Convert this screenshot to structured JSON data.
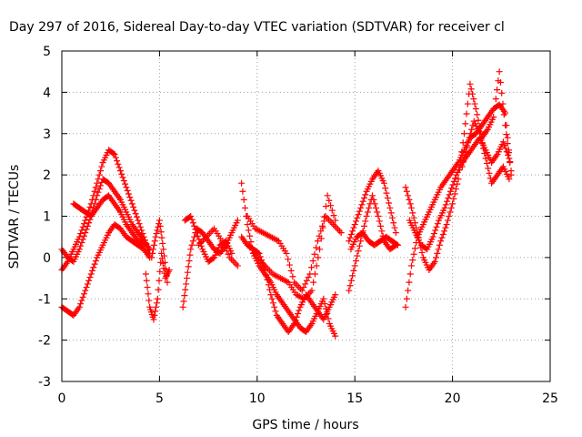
{
  "chart_data": {
    "type": "scatter",
    "title": "Day 297 of 2016, Sidereal Day-to-day VTEC variation (SDTVAR) for receiver cl",
    "xlabel": "GPS time / hours",
    "ylabel": "SDTVAR / TECUs",
    "xlim": [
      0,
      25
    ],
    "ylim": [
      -3,
      5
    ],
    "xticks": [
      0,
      5,
      10,
      15,
      20,
      25
    ],
    "yticks": [
      -3,
      -2,
      -1,
      0,
      1,
      2,
      3,
      4,
      5
    ],
    "grid": true,
    "marker": "+",
    "color": "#ff0000",
    "series": [
      {
        "x": [
          0.0,
          0.3,
          0.6,
          0.9,
          1.2,
          1.5,
          1.8,
          2.1,
          2.4,
          2.7,
          3.0,
          3.3,
          3.6,
          3.9,
          4.2,
          4.5
        ],
        "y": [
          -1.2,
          -1.3,
          -1.4,
          -1.2,
          -0.8,
          -0.4,
          0.0,
          0.3,
          0.6,
          0.8,
          0.7,
          0.5,
          0.4,
          0.3,
          0.2,
          0.0
        ]
      },
      {
        "x": [
          0.0,
          0.3,
          0.6,
          0.9,
          1.2,
          1.5,
          1.8,
          2.1,
          2.4,
          2.7,
          3.0,
          3.3,
          3.6,
          3.9,
          4.2,
          4.5
        ],
        "y": [
          -0.3,
          -0.1,
          0.2,
          0.5,
          0.9,
          1.3,
          1.8,
          2.3,
          2.6,
          2.5,
          2.1,
          1.7,
          1.3,
          0.9,
          0.5,
          0.1
        ]
      },
      {
        "x": [
          0.0,
          0.3,
          0.6,
          0.9,
          1.2,
          1.5,
          1.8,
          2.1,
          2.4,
          2.7,
          3.0,
          3.3,
          3.6,
          3.9,
          4.2,
          4.5
        ],
        "y": [
          0.2,
          0.0,
          -0.1,
          0.2,
          0.6,
          1.0,
          1.5,
          1.9,
          1.8,
          1.6,
          1.4,
          1.1,
          0.8,
          0.6,
          0.4,
          0.2
        ]
      },
      {
        "x": [
          0.6,
          0.9,
          1.2,
          1.5,
          1.8,
          2.1,
          2.4,
          2.7,
          3.0,
          3.3,
          3.6,
          3.9,
          4.2
        ],
        "y": [
          1.3,
          1.2,
          1.1,
          1.0,
          1.2,
          1.4,
          1.5,
          1.3,
          1.1,
          0.8,
          0.6,
          0.4,
          0.3
        ]
      },
      {
        "x": [
          4.3,
          4.5,
          4.7,
          4.9,
          5.1,
          5.3,
          5.5
        ],
        "y": [
          -0.4,
          -1.2,
          -1.5,
          -1.0,
          0.1,
          -0.5,
          -0.3
        ]
      },
      {
        "x": [
          4.6,
          4.8,
          5.0,
          5.2,
          5.4
        ],
        "y": [
          0.0,
          0.5,
          0.9,
          0.2,
          -0.6
        ]
      },
      {
        "x": [
          6.2,
          6.4,
          6.6,
          6.9,
          7.2,
          7.5,
          7.8,
          8.1,
          8.4,
          8.7,
          9.0
        ],
        "y": [
          -1.2,
          -0.5,
          0.2,
          0.7,
          0.6,
          0.4,
          0.2,
          0.1,
          0.3,
          0.6,
          0.9
        ]
      },
      {
        "x": [
          6.3,
          6.6,
          6.9,
          7.2,
          7.5,
          7.8,
          8.1,
          8.4,
          8.7
        ],
        "y": [
          0.9,
          1.0,
          0.6,
          0.2,
          -0.1,
          0.0,
          0.3,
          0.4,
          0.1
        ]
      },
      {
        "x": [
          7.0,
          7.4,
          7.8,
          8.2,
          8.6,
          9.0
        ],
        "y": [
          0.3,
          0.5,
          0.7,
          0.4,
          0.0,
          -0.2
        ]
      },
      {
        "x": [
          9.2,
          9.5,
          9.8,
          10.1,
          10.4,
          10.7,
          11.0,
          11.3,
          11.6,
          11.9,
          12.2,
          12.5,
          12.8,
          13.1,
          13.4,
          13.7,
          14.0
        ],
        "y": [
          1.8,
          0.8,
          0.1,
          -0.2,
          -0.4,
          -0.6,
          -0.9,
          -1.1,
          -1.3,
          -1.5,
          -1.7,
          -1.8,
          -1.6,
          -1.3,
          -1.0,
          -1.6,
          -1.9
        ]
      },
      {
        "x": [
          9.2,
          9.5,
          9.8,
          10.1,
          10.4,
          10.7,
          11.0,
          11.3,
          11.6,
          11.9,
          12.2,
          12.5,
          12.8,
          13.1,
          13.4,
          13.7,
          14.0
        ],
        "y": [
          0.5,
          0.3,
          0.2,
          0.1,
          -0.3,
          -0.9,
          -1.4,
          -1.6,
          -1.8,
          -1.6,
          -1.2,
          -0.9,
          -1.1,
          -1.3,
          -1.5,
          -1.2,
          -0.9
        ]
      },
      {
        "x": [
          9.5,
          9.9,
          10.3,
          10.7,
          11.1,
          11.5,
          11.9,
          12.3,
          12.7,
          13.1,
          13.5,
          13.9,
          14.3
        ],
        "y": [
          1.0,
          0.7,
          0.6,
          0.5,
          0.4,
          0.1,
          -0.6,
          -0.8,
          -0.4,
          0.4,
          1.0,
          0.8,
          0.6
        ]
      },
      {
        "x": [
          9.6,
          10.0,
          10.4,
          10.8,
          11.2,
          11.6,
          12.0,
          12.4,
          12.8,
          13.2,
          13.6,
          14.0
        ],
        "y": [
          0.3,
          0.0,
          -0.2,
          -0.4,
          -0.5,
          -0.6,
          -0.9,
          -1.0,
          -0.8,
          0.2,
          1.5,
          0.9
        ]
      },
      {
        "x": [
          14.7,
          15.0,
          15.3,
          15.6,
          15.9,
          16.2,
          16.5,
          16.8,
          17.1
        ],
        "y": [
          0.4,
          0.8,
          1.2,
          1.6,
          1.9,
          2.1,
          1.8,
          1.2,
          0.6
        ]
      },
      {
        "x": [
          14.7,
          15.0,
          15.3,
          15.6,
          15.9,
          16.2,
          16.5,
          16.8,
          17.1
        ],
        "y": [
          -0.8,
          -0.2,
          0.4,
          1.0,
          1.5,
          1.0,
          0.4,
          0.2,
          0.3
        ]
      },
      {
        "x": [
          14.8,
          15.1,
          15.4,
          15.7,
          16.0,
          16.3,
          16.6,
          16.9,
          17.2
        ],
        "y": [
          0.2,
          0.5,
          0.6,
          0.4,
          0.3,
          0.4,
          0.5,
          0.4,
          0.3
        ]
      },
      {
        "x": [
          17.6,
          17.9,
          18.2,
          18.5,
          18.8,
          19.1,
          19.4,
          19.7,
          20.0,
          20.3,
          20.6,
          20.9,
          21.2,
          21.5,
          21.8,
          22.1,
          22.4,
          22.7,
          23.0
        ],
        "y": [
          -1.2,
          -0.2,
          0.5,
          0.8,
          1.1,
          1.4,
          1.7,
          1.9,
          2.1,
          2.3,
          2.6,
          2.9,
          3.0,
          3.2,
          3.4,
          3.6,
          3.7,
          3.5,
          2.0
        ]
      },
      {
        "x": [
          17.6,
          17.9,
          18.2,
          18.5,
          18.8,
          19.1,
          19.4,
          19.7,
          20.0,
          20.3,
          20.6,
          20.9,
          21.2,
          21.5,
          21.8,
          22.1,
          22.4,
          22.7,
          23.0
        ],
        "y": [
          1.7,
          1.2,
          0.6,
          0.0,
          -0.3,
          -0.1,
          0.4,
          0.8,
          1.3,
          1.9,
          3.0,
          4.2,
          3.6,
          2.9,
          3.1,
          3.4,
          4.5,
          3.2,
          2.1
        ]
      },
      {
        "x": [
          17.8,
          18.1,
          18.4,
          18.7,
          19.0,
          19.3,
          19.6,
          19.9,
          20.2,
          20.5,
          20.8,
          21.1,
          21.4,
          21.7,
          22.0,
          22.3,
          22.6,
          22.9
        ],
        "y": [
          0.9,
          0.6,
          0.3,
          0.2,
          0.5,
          0.9,
          1.2,
          1.6,
          2.0,
          2.3,
          2.5,
          2.7,
          2.9,
          2.6,
          2.3,
          2.5,
          2.8,
          2.4
        ]
      },
      {
        "x": [
          20.5,
          20.8,
          21.1,
          21.4,
          21.7,
          22.0,
          22.3,
          22.6,
          22.9
        ],
        "y": [
          2.2,
          2.8,
          3.3,
          3.0,
          2.4,
          1.8,
          2.0,
          2.2,
          1.9
        ]
      }
    ]
  }
}
